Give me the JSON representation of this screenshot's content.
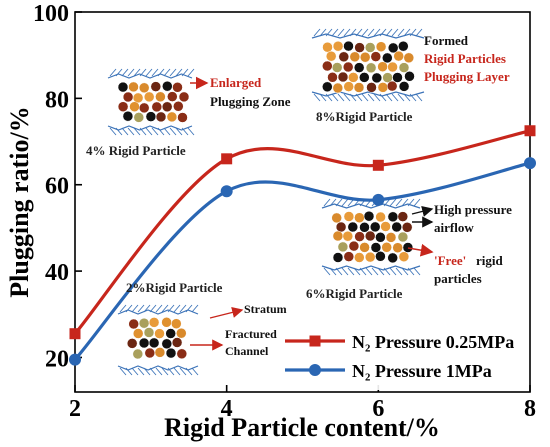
{
  "chart_data": {
    "type": "line",
    "title": "",
    "xlabel": "Rigid Particle content/%",
    "ylabel": "Plugging ratio/%",
    "xlim": [
      2,
      8
    ],
    "ylim": [
      12,
      100
    ],
    "xticks": [
      "2",
      "4",
      "6",
      "8"
    ],
    "yticks": [
      "20",
      "40",
      "60",
      "80",
      "100"
    ],
    "grid": false,
    "legend_position": "bottom-right",
    "series": [
      {
        "name": "N₂ Pressure 0.25MPa",
        "marker": "square",
        "color": "#c7261c",
        "x": [
          2,
          4,
          6,
          8
        ],
        "y": [
          25.5,
          66.0,
          64.5,
          72.5
        ]
      },
      {
        "name": "N₂ Pressure 1MPa",
        "marker": "circle",
        "color": "#2a66b3",
        "x": [
          2,
          4,
          6,
          8
        ],
        "y": [
          19.5,
          58.5,
          56.5,
          65.0
        ]
      }
    ],
    "annotations": {
      "p4": {
        "caption": "4% Rigid Particle",
        "red": "Enlarged",
        "black": "Plugging Zone"
      },
      "p8": {
        "caption": "8%Rigid Particle",
        "line1": "Formed",
        "line2": "Rigid Particles",
        "line3": "Plugging Layer"
      },
      "p6": {
        "caption": "6%Rigid Particle",
        "line1": "High pressure",
        "line2": "airflow",
        "free": "'Free'",
        "line3": "rigid",
        "line4": "particles"
      },
      "p2": {
        "caption": "2%Rigid Particle",
        "stratum": "Stratum",
        "fractured": "Fractured",
        "channel": "Channel"
      }
    }
  }
}
